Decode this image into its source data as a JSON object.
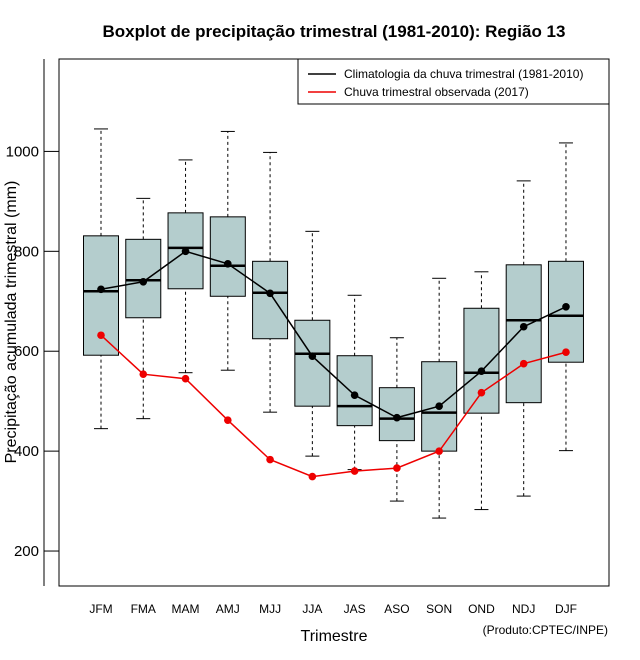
{
  "chart_data": {
    "type": "boxplot",
    "title": "Boxplot de precipitação trimestral (1981-2010): Região 13",
    "xlabel": "Trimestre",
    "ylabel": "Precipitação acumulada trimestral (mm)",
    "ylim": [
      130,
      1185
    ],
    "yticks": [
      200,
      400,
      600,
      800,
      1000
    ],
    "categories": [
      "JFM",
      "FMA",
      "MAM",
      "AMJ",
      "MJJ",
      "JJA",
      "JAS",
      "ASO",
      "SON",
      "OND",
      "NDJ",
      "DJF"
    ],
    "boxes": [
      {
        "min": 445,
        "q1": 592,
        "median": 720,
        "q3": 831,
        "max": 1045
      },
      {
        "min": 465,
        "q1": 667,
        "median": 742,
        "q3": 824,
        "max": 906
      },
      {
        "min": 557,
        "q1": 725,
        "median": 807,
        "q3": 877,
        "max": 983
      },
      {
        "min": 562,
        "q1": 710,
        "median": 771,
        "q3": 869,
        "max": 1040
      },
      {
        "min": 478,
        "q1": 625,
        "median": 717,
        "q3": 780,
        "max": 998
      },
      {
        "min": 390,
        "q1": 490,
        "median": 595,
        "q3": 662,
        "max": 840
      },
      {
        "min": 363,
        "q1": 451,
        "median": 490,
        "q3": 591,
        "max": 712
      },
      {
        "min": 300,
        "q1": 421,
        "median": 465,
        "q3": 527,
        "max": 627
      },
      {
        "min": 266,
        "q1": 400,
        "median": 477,
        "q3": 579,
        "max": 746
      },
      {
        "min": 283,
        "q1": 476,
        "median": 557,
        "q3": 686,
        "max": 759
      },
      {
        "min": 310,
        "q1": 497,
        "median": 662,
        "q3": 773,
        "max": 941
      },
      {
        "min": 401,
        "q1": 578,
        "median": 671,
        "q3": 780,
        "max": 1017
      }
    ],
    "series": [
      {
        "name": "Climatologia da chuva trimestral (1981-2010)",
        "color": "#000000",
        "values": [
          724,
          739,
          800,
          775,
          716,
          590,
          512,
          467,
          490,
          560,
          649,
          689
        ]
      },
      {
        "name": "Chuva trimestral observada (2017)",
        "color": "#ee0000",
        "values": [
          632,
          554,
          545,
          462,
          383,
          349,
          360,
          366,
          400,
          517,
          575,
          598
        ]
      }
    ],
    "legend_position": "top-right",
    "box_color": "#b4cdcd"
  },
  "credit": "(Produto:CPTEC/INPE)"
}
